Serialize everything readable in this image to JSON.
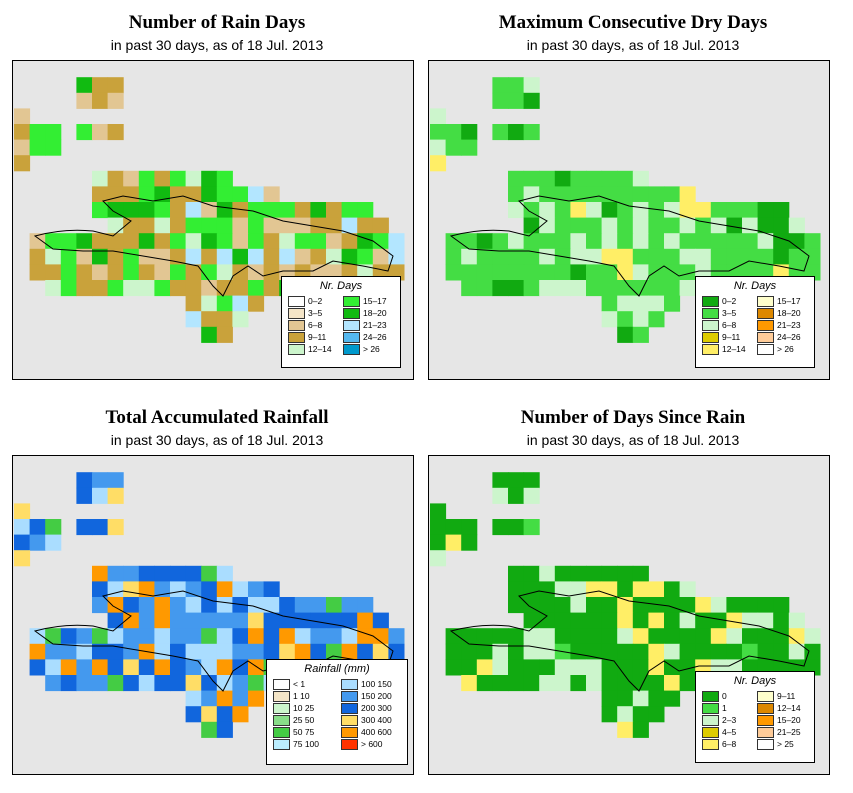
{
  "panels": [
    {
      "title": "Number of Rain Days",
      "subtitle": "in past 30 days, as of  18 Jul. 2013",
      "legend_title": "Nr. Days",
      "legend": [
        {
          "label": "0–2",
          "color": "#ffffff"
        },
        {
          "label": "3–5",
          "color": "#f4e5c8"
        },
        {
          "label": "6–8",
          "color": "#e2c693"
        },
        {
          "label": "9–11",
          "color": "#c9a23b"
        },
        {
          "label": "12–14",
          "color": "#ccf5cc"
        },
        {
          "label": "15–17",
          "color": "#33ee33"
        },
        {
          "label": "18–20",
          "color": "#11bb11"
        },
        {
          "label": "21–23",
          "color": "#b3e6ff"
        },
        {
          "label": "24–26",
          "color": "#55b8ee"
        },
        {
          "label": "> 26",
          "color": "#0099cc"
        }
      ]
    },
    {
      "title": "Maximum Consecutive Dry Days",
      "subtitle": "in past 30 days, as of  18 Jul. 2013",
      "legend_title": "Nr. Days",
      "legend": [
        {
          "label": "0–2",
          "color": "#11aa11"
        },
        {
          "label": "3–5",
          "color": "#44dd44"
        },
        {
          "label": "6–8",
          "color": "#ccf5cc"
        },
        {
          "label": "9–11",
          "color": "#ddcc00"
        },
        {
          "label": "12–14",
          "color": "#ffee66"
        },
        {
          "label": "15–17",
          "color": "#ffffcc"
        },
        {
          "label": "18–20",
          "color": "#dd8800"
        },
        {
          "label": "21–23",
          "color": "#ff9900"
        },
        {
          "label": "24–26",
          "color": "#ffcc99"
        },
        {
          "label": "> 26",
          "color": "#ffffff"
        }
      ]
    },
    {
      "title": "Total Accumulated Rainfall",
      "subtitle": "in past 30 days, as of  18 Jul. 2013",
      "legend_title": "Rainfall (mm)",
      "legend": [
        {
          "label": "< 1",
          "color": "#ffffff"
        },
        {
          "label": "1   10",
          "color": "#f5e6c8"
        },
        {
          "label": "10   25",
          "color": "#ccf5cc"
        },
        {
          "label": "25   50",
          "color": "#88dd88"
        },
        {
          "label": "50   75",
          "color": "#44cc44"
        },
        {
          "label": "75   100",
          "color": "#bbeeff"
        },
        {
          "label": "100   150",
          "color": "#aaddff"
        },
        {
          "label": "150   200",
          "color": "#4499ee"
        },
        {
          "label": "200   300",
          "color": "#1166dd"
        },
        {
          "label": "300   400",
          "color": "#ffdd66"
        },
        {
          "label": "400   600",
          "color": "#ff9900"
        },
        {
          "label": "> 600",
          "color": "#ff3300"
        }
      ]
    },
    {
      "title": "Number of Days Since Rain",
      "subtitle": "in past 30 days, as of  18 Jul. 2013",
      "legend_title": "Nr. Days",
      "legend": [
        {
          "label": "0",
          "color": "#11aa11"
        },
        {
          "label": "1",
          "color": "#44dd44"
        },
        {
          "label": "2–3",
          "color": "#ccf5cc"
        },
        {
          "label": "4–5",
          "color": "#ddcc00"
        },
        {
          "label": "6–8",
          "color": "#ffee66"
        },
        {
          "label": "9–11",
          "color": "#ffffcc"
        },
        {
          "label": "12–14",
          "color": "#dd8800"
        },
        {
          "label": "15–20",
          "color": "#ff9900"
        },
        {
          "label": "21–25",
          "color": "#ffcc99"
        },
        {
          "label": "> 25",
          "color": "#ffffff"
        }
      ]
    }
  ]
}
